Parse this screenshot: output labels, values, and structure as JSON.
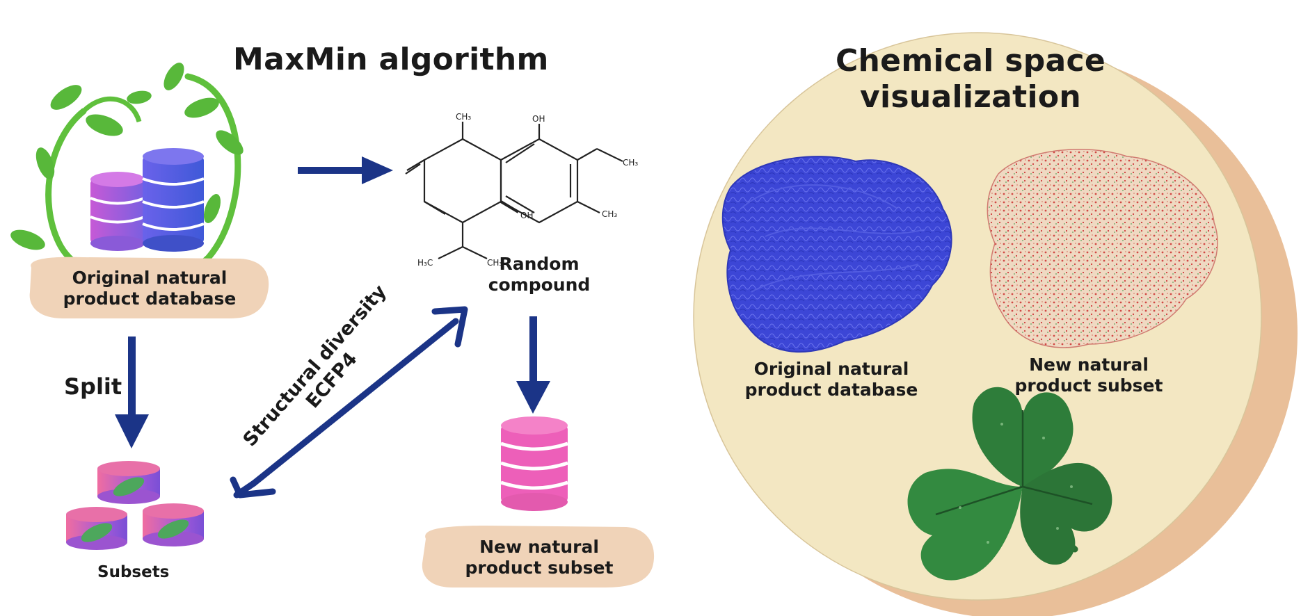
{
  "maxmin": {
    "title": "MaxMin algorithm",
    "database_label": [
      "Original natural",
      "product database"
    ],
    "split_label": "Split",
    "subsets_label": "Subsets",
    "random_compound_label": [
      "Random",
      "compound"
    ],
    "diversity_label": [
      "Structural diversity",
      "ECFP4"
    ],
    "new_subset_label": [
      "New natural",
      "product subset"
    ],
    "molecule_atoms": {
      "ch3_top": "CH₃",
      "oh_top": "OH",
      "ch3_ome": "CH₃",
      "ch3_right": "CH₃",
      "oh_mid": "OH",
      "h3c": "H₃C",
      "ch3_bottom": "CH₃"
    }
  },
  "chemical_space": {
    "title": [
      "Chemical space",
      "visualization"
    ],
    "original_label": [
      "Original natural",
      "product database"
    ],
    "new_label": [
      "New natural",
      "product subset"
    ]
  },
  "colors": {
    "arrow": "#1b3487",
    "circle_fill": "#f3e7c2",
    "circle_shadow": "#e9bf99",
    "tag_fill": "#f0d3b8",
    "pink_db": "#ed5fb9",
    "blue_cloud": "#3c46d6",
    "leaf_green": "#2e7d3a",
    "vine_green": "#5fc03c"
  }
}
